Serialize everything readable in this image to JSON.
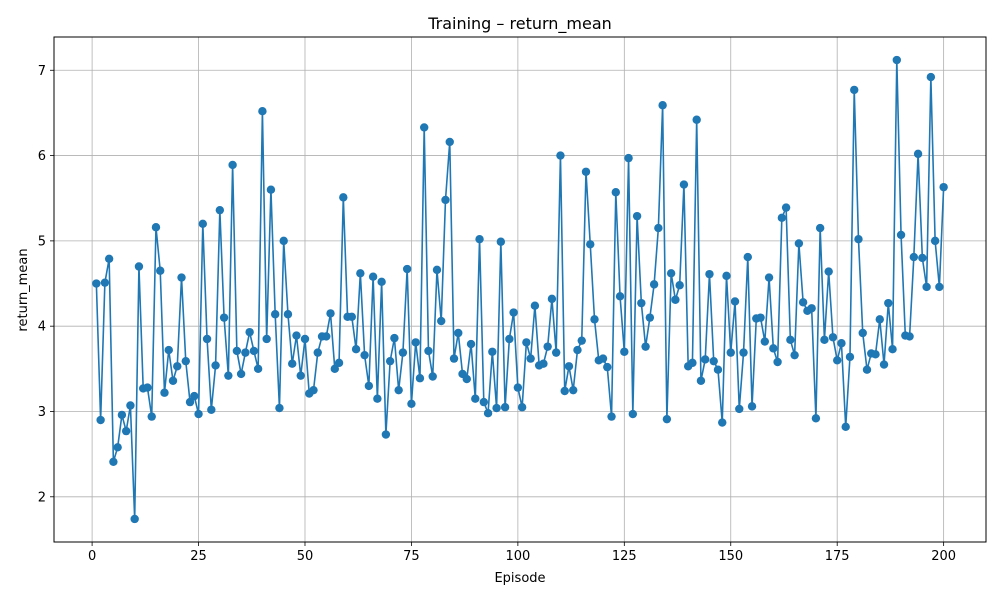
{
  "chart_data": {
    "type": "line",
    "title": "Training – return_mean",
    "xlabel": "Episode",
    "ylabel": "return_mean",
    "xlim": [
      -8.95,
      209.95
    ],
    "ylim": [
      1.47,
      7.39
    ],
    "xticks": [
      0,
      25,
      50,
      75,
      100,
      125,
      150,
      175,
      200
    ],
    "yticks": [
      2,
      3,
      4,
      5,
      6,
      7
    ],
    "grid": true,
    "legend": "none",
    "series": [
      {
        "color": "#1f77b4",
        "marker": "circle",
        "x": [
          1,
          2,
          3,
          4,
          5,
          6,
          7,
          8,
          9,
          10,
          11,
          12,
          13,
          14,
          15,
          16,
          17,
          18,
          19,
          20,
          21,
          22,
          23,
          24,
          25,
          26,
          27,
          28,
          29,
          30,
          31,
          32,
          33,
          34,
          35,
          36,
          37,
          38,
          39,
          40,
          41,
          42,
          43,
          44,
          45,
          46,
          47,
          48,
          49,
          50,
          51,
          52,
          53,
          54,
          55,
          56,
          57,
          58,
          59,
          60,
          61,
          62,
          63,
          64,
          65,
          66,
          67,
          68,
          69,
          70,
          71,
          72,
          73,
          74,
          75,
          76,
          77,
          78,
          79,
          80,
          81,
          82,
          83,
          84,
          85,
          86,
          87,
          88,
          89,
          90,
          91,
          92,
          93,
          94,
          95,
          96,
          97,
          98,
          99,
          100,
          101,
          102,
          103,
          104,
          105,
          106,
          107,
          108,
          109,
          110,
          111,
          112,
          113,
          114,
          115,
          116,
          117,
          118,
          119,
          120,
          121,
          122,
          123,
          124,
          125,
          126,
          127,
          128,
          129,
          130,
          131,
          132,
          133,
          134,
          135,
          136,
          137,
          138,
          139,
          140,
          141,
          142,
          143,
          144,
          145,
          146,
          147,
          148,
          149,
          150,
          151,
          152,
          153,
          154,
          155,
          156,
          157,
          158,
          159,
          160,
          161,
          162,
          163,
          164,
          165,
          166,
          167,
          168,
          169,
          170,
          171,
          172,
          173,
          174,
          175,
          176,
          177,
          178,
          179,
          180,
          181,
          182,
          183,
          184,
          185,
          186,
          187,
          188,
          189,
          190,
          191,
          192,
          193,
          194,
          195,
          196,
          197,
          198,
          199,
          200
        ],
        "y": [
          4.5,
          2.9,
          4.51,
          4.79,
          2.41,
          2.58,
          2.96,
          2.77,
          3.07,
          1.74,
          4.7,
          3.27,
          3.28,
          2.94,
          5.16,
          4.65,
          3.22,
          3.72,
          3.36,
          3.53,
          4.57,
          3.59,
          3.11,
          3.18,
          2.97,
          5.2,
          3.85,
          3.02,
          3.54,
          5.36,
          4.1,
          3.42,
          5.89,
          3.71,
          3.44,
          3.69,
          3.93,
          3.71,
          3.5,
          6.52,
          3.85,
          5.6,
          4.14,
          3.04,
          5.0,
          4.14,
          3.56,
          3.89,
          3.42,
          3.85,
          3.21,
          3.25,
          3.69,
          3.88,
          3.88,
          4.15,
          3.5,
          3.57,
          5.51,
          4.11,
          4.11,
          3.73,
          4.62,
          3.66,
          3.3,
          4.58,
          3.15,
          4.52,
          2.73,
          3.59,
          3.86,
          3.25,
          3.69,
          4.67,
          3.09,
          3.81,
          3.39,
          6.33,
          3.71,
          3.41,
          4.66,
          4.06,
          5.48,
          6.16,
          3.62,
          3.92,
          3.44,
          3.38,
          3.79,
          3.15,
          5.02,
          3.11,
          2.98,
          3.7,
          3.04,
          4.99,
          3.05,
          3.85,
          4.16,
          3.28,
          3.05,
          3.81,
          3.62,
          4.24,
          3.54,
          3.56,
          3.76,
          4.32,
          3.69,
          6.0,
          3.24,
          3.53,
          3.25,
          3.72,
          3.83,
          5.81,
          4.96,
          4.08,
          3.6,
          3.62,
          3.52,
          2.94,
          5.57,
          4.35,
          3.7,
          5.97,
          2.97,
          5.29,
          4.27,
          3.76,
          4.1,
          4.49,
          5.15,
          6.59,
          2.91,
          4.62,
          4.31,
          4.48,
          5.66,
          3.53,
          3.57,
          6.42,
          3.36,
          3.61,
          4.61,
          3.59,
          3.49,
          2.87,
          4.59,
          3.69,
          4.29,
          3.03,
          3.69,
          4.81,
          3.06,
          4.09,
          4.1,
          3.82,
          4.57,
          3.74,
          3.58,
          5.27,
          5.39,
          3.84,
          3.66,
          4.97,
          4.28,
          4.18,
          4.21,
          2.92,
          5.15,
          3.84,
          4.64,
          3.87,
          3.6,
          3.8,
          2.82,
          3.64,
          6.77,
          5.02,
          3.92,
          3.49,
          3.68,
          3.67,
          4.08,
          3.55,
          4.27,
          3.73,
          7.12,
          5.07,
          3.89,
          3.88,
          4.81,
          6.02,
          4.8,
          4.46,
          6.92,
          5.0,
          4.46,
          5.63
        ]
      }
    ]
  }
}
